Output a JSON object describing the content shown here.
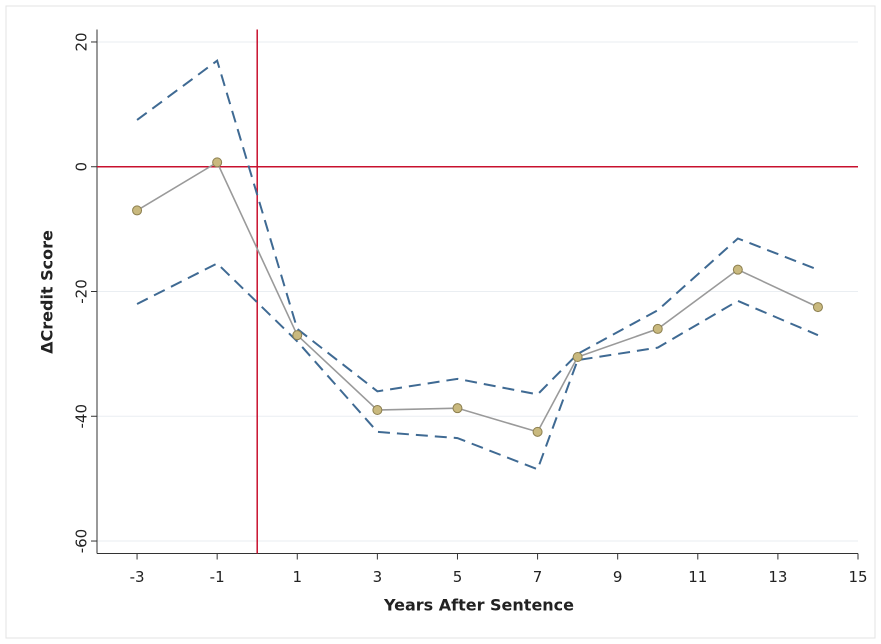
{
  "chart_data": {
    "type": "line",
    "x": [
      -3,
      -1,
      1,
      3,
      5,
      7,
      8,
      10,
      12,
      14
    ],
    "series": [
      {
        "color": "#3f6a93",
        "style": "dashed",
        "values": [
          7.5,
          17,
          -26,
          -36,
          -34,
          -36.5,
          -30,
          -23,
          -11.5,
          -16.5
        ]
      },
      {
        "color": "#3f6a93",
        "style": "dashed",
        "values": [
          -22,
          -15.5,
          -28,
          -42.5,
          -43.5,
          -48.5,
          -31,
          -29,
          -21.5,
          -27
        ]
      },
      {
        "color": "#9a9a9a",
        "style": "solid",
        "marker": "#c9b97e",
        "values": [
          -7,
          0.7,
          -27,
          -39,
          -38.7,
          -42.5,
          -30.5,
          -26,
          -16.5,
          -22.5
        ]
      }
    ],
    "xlabel": "Years After Sentence",
    "ylabel": "ΔCredit Score",
    "xlim": [
      -4,
      15
    ],
    "ylim": [
      -62,
      22
    ],
    "xticks": [
      -3,
      -1,
      1,
      3,
      5,
      7,
      9,
      11,
      13,
      15
    ],
    "yticks": [
      20,
      0,
      -20,
      -40,
      -60
    ],
    "grid": true,
    "xline": 0,
    "yline": 0,
    "refline_color": "#c8102e"
  }
}
